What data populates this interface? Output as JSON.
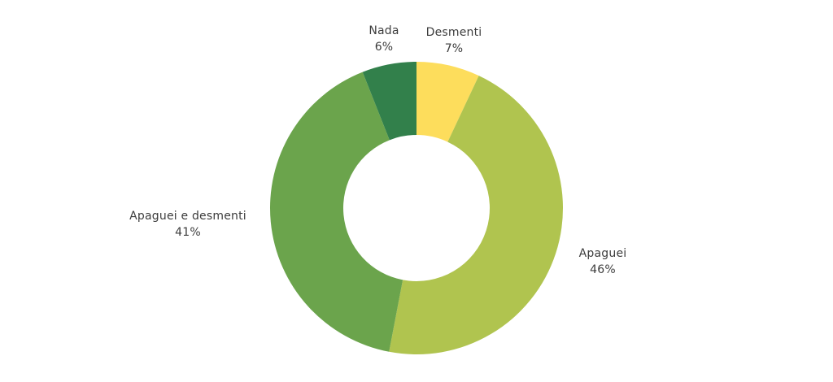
{
  "chart_data": {
    "type": "pie",
    "variant": "donut",
    "title": "",
    "start": "top",
    "direction": "clockwise",
    "slices": [
      {
        "label": "Desmenti",
        "value": 7,
        "display": "7%",
        "color": "#fddd5c"
      },
      {
        "label": "Apaguei",
        "value": 46,
        "display": "46%",
        "color": "#b0c44f"
      },
      {
        "label": "Apaguei e desmenti",
        "value": 41,
        "display": "41%",
        "color": "#6ba44c"
      },
      {
        "label": "Nada",
        "value": 6,
        "display": "6%",
        "color": "#32804b"
      }
    ]
  }
}
